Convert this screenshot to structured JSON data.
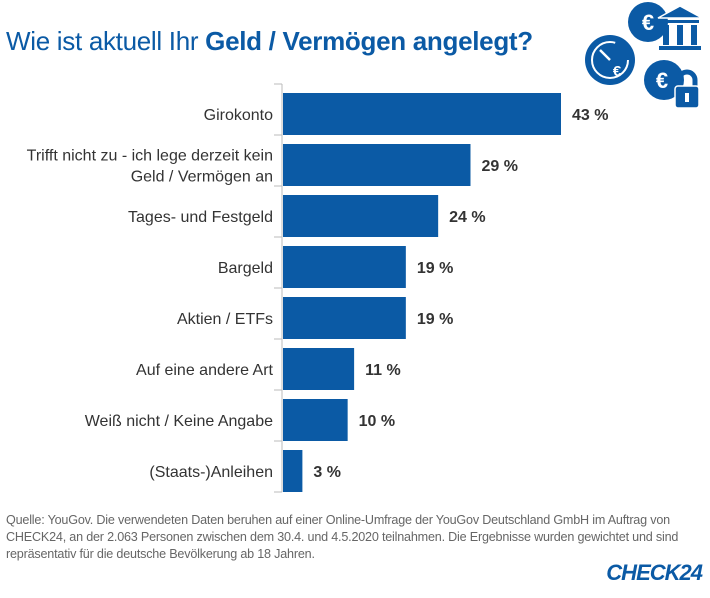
{
  "chart_data": {
    "type": "bar",
    "orientation": "horizontal",
    "title_regular": "Wie ist aktuell Ihr ",
    "title_bold": "Geld / Vermögen angelegt?",
    "categories": [
      [
        "Girokonto"
      ],
      [
        "Trifft nicht zu - ich lege derzeit kein",
        "Geld / Vermögen an"
      ],
      [
        "Tages- und Festgeld"
      ],
      [
        "Bargeld"
      ],
      [
        "Aktien / ETFs"
      ],
      [
        "Auf eine andere Art"
      ],
      [
        "Weiß nicht / Keine Angabe"
      ],
      [
        "(Staats-)Anleihen"
      ]
    ],
    "values": [
      43,
      29,
      24,
      19,
      19,
      11,
      10,
      3
    ],
    "value_labels": [
      "43 %",
      "29 %",
      "24 %",
      "19 %",
      "19 %",
      "11 %",
      "10 %",
      "3 %"
    ],
    "unit": "%",
    "bar_color": "#0b5aa5",
    "grid": false
  },
  "source": "Quelle: YouGov. Die verwendeten Daten beruhen auf einer Online-Umfrage der YouGov Deutschland GmbH im Auftrag von CHECK24, an der 2.063 Personen zwischen dem 30.4. und 4.5.2020 teilnahmen. Die Ergebnisse wurden gewichtet und sind repräsentativ für die deutsche Bevölkerung ab 18 Jahren.",
  "logo": "CHECK24",
  "icons": [
    "euro-clock-icon",
    "euro-bank-icon",
    "euro-lock-icon"
  ]
}
